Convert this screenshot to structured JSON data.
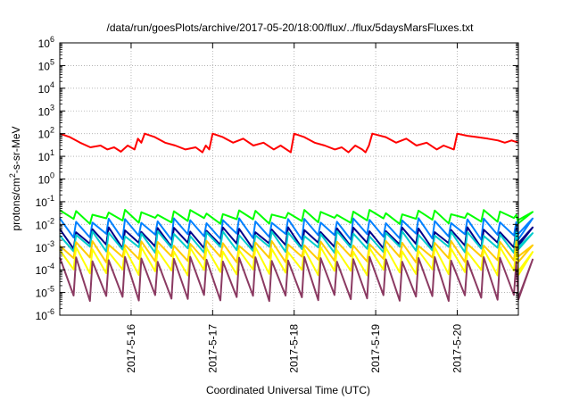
{
  "chart_data": {
    "type": "line",
    "title": "/data/run/goesPlots/archive/2017-05-20/18:00/flux/../flux/5daysMarsFluxes.txt",
    "xlabel": "Coordinated Universal Time (UTC)",
    "ylabel_main": "protons/cm",
    "ylabel_sup": "2",
    "ylabel_tail": "-s-sr-MeV",
    "y_scale": "log",
    "ylim_exp": [
      -6,
      6
    ],
    "y_ticks": [
      {
        "exp": -6,
        "label": "10",
        "sup": "-6"
      },
      {
        "exp": -5,
        "label": "10",
        "sup": "-5"
      },
      {
        "exp": -4,
        "label": "10",
        "sup": "-4"
      },
      {
        "exp": -3,
        "label": "10",
        "sup": "-3"
      },
      {
        "exp": -2,
        "label": "10",
        "sup": "-2"
      },
      {
        "exp": -1,
        "label": "10",
        "sup": "-1"
      },
      {
        "exp": 0,
        "label": "10",
        "sup": "0"
      },
      {
        "exp": 1,
        "label": "10",
        "sup": "1"
      },
      {
        "exp": 2,
        "label": "10",
        "sup": "2"
      },
      {
        "exp": 3,
        "label": "10",
        "sup": "3"
      },
      {
        "exp": 4,
        "label": "10",
        "sup": "4"
      },
      {
        "exp": 5,
        "label": "10",
        "sup": "5"
      },
      {
        "exp": 6,
        "label": "10",
        "sup": "6"
      }
    ],
    "xlim": [
      "2017-05-15 03:00",
      "2017-05-20 18:00"
    ],
    "x_ticks": [
      {
        "t": "2017-05-16 00:00",
        "label": "2017-5-16"
      },
      {
        "t": "2017-05-17 00:00",
        "label": "2017-5-17"
      },
      {
        "t": "2017-05-18 00:00",
        "label": "2017-5-18"
      },
      {
        "t": "2017-05-19 00:00",
        "label": "2017-5-19"
      },
      {
        "t": "2017-05-20 00:00",
        "label": "2017-5-20"
      }
    ],
    "grid": true,
    "series": [
      {
        "color": "#ff0000",
        "width": 2,
        "points": [
          [
            "2017-05-15 03:00",
            100
          ],
          [
            "2017-05-15 06:00",
            70
          ],
          [
            "2017-05-15 09:00",
            40
          ],
          [
            "2017-05-15 12:00",
            25
          ],
          [
            "2017-05-15 15:00",
            30
          ],
          [
            "2017-05-15 17:00",
            20
          ],
          [
            "2017-05-15 19:00",
            25
          ],
          [
            "2017-05-15 21:00",
            16
          ],
          [
            "2017-05-15 23:00",
            30
          ],
          [
            "2017-05-16 01:00",
            20
          ],
          [
            "2017-05-16 02:00",
            60
          ],
          [
            "2017-05-16 03:00",
            40
          ],
          [
            "2017-05-16 04:00",
            100
          ],
          [
            "2017-05-16 07:00",
            70
          ],
          [
            "2017-05-16 10:00",
            40
          ],
          [
            "2017-05-16 13:00",
            30
          ],
          [
            "2017-05-16 16:00",
            20
          ],
          [
            "2017-05-16 19:00",
            25
          ],
          [
            "2017-05-16 21:00",
            15
          ],
          [
            "2017-05-16 22:00",
            30
          ],
          [
            "2017-05-16 23:00",
            20
          ],
          [
            "2017-05-17 00:00",
            100
          ],
          [
            "2017-05-17 03:00",
            70
          ],
          [
            "2017-05-17 06:00",
            40
          ],
          [
            "2017-05-17 09:00",
            60
          ],
          [
            "2017-05-17 12:00",
            30
          ],
          [
            "2017-05-17 15:00",
            40
          ],
          [
            "2017-05-17 18:00",
            20
          ],
          [
            "2017-05-17 20:00",
            30
          ],
          [
            "2017-05-17 23:00",
            15
          ],
          [
            "2017-05-18 00:00",
            100
          ],
          [
            "2017-05-18 03:00",
            70
          ],
          [
            "2017-05-18 06:00",
            40
          ],
          [
            "2017-05-18 09:00",
            30
          ],
          [
            "2017-05-18 12:00",
            20
          ],
          [
            "2017-05-18 14:00",
            25
          ],
          [
            "2017-05-18 16:00",
            15
          ],
          [
            "2017-05-18 18:00",
            30
          ],
          [
            "2017-05-18 20:00",
            20
          ],
          [
            "2017-05-18 21:00",
            15
          ],
          [
            "2017-05-18 22:00",
            30
          ],
          [
            "2017-05-18 23:00",
            100
          ],
          [
            "2017-05-19 03:00",
            70
          ],
          [
            "2017-05-19 06:00",
            40
          ],
          [
            "2017-05-19 09:00",
            60
          ],
          [
            "2017-05-19 12:00",
            30
          ],
          [
            "2017-05-19 15:00",
            40
          ],
          [
            "2017-05-19 18:00",
            20
          ],
          [
            "2017-05-19 20:00",
            30
          ],
          [
            "2017-05-19 23:00",
            20
          ],
          [
            "2017-05-20 00:00",
            100
          ],
          [
            "2017-05-20 03:00",
            80
          ],
          [
            "2017-05-20 06:00",
            70
          ],
          [
            "2017-05-20 09:00",
            60
          ],
          [
            "2017-05-20 12:00",
            50
          ],
          [
            "2017-05-20 14:00",
            40
          ],
          [
            "2017-05-20 16:00",
            50
          ],
          [
            "2017-05-20 18:00",
            40
          ]
        ]
      },
      {
        "color": "#00ff00",
        "width": 2,
        "periodic": {
          "hi": 0.035,
          "lo": 0.015,
          "spikes_per_day": 5
        }
      },
      {
        "color": "#0080ff",
        "width": 2,
        "periodic": {
          "hi": 0.015,
          "lo": 0.003,
          "spikes_per_day": 5
        }
      },
      {
        "color": "#00008b",
        "width": 2,
        "periodic": {
          "hi": 0.006,
          "lo": 0.0012,
          "spikes_per_day": 5
        }
      },
      {
        "color": "#00cccc",
        "width": 2,
        "periodic": {
          "hi": 0.004,
          "lo": 0.0008,
          "spikes_per_day": 5
        }
      },
      {
        "color": "#ffcc00",
        "width": 2,
        "periodic": {
          "hi": 0.0015,
          "lo": 0.0003,
          "spikes_per_day": 5
        }
      },
      {
        "color": "#ffff00",
        "width": 2,
        "periodic": {
          "hi": 0.0008,
          "lo": 8e-05,
          "spikes_per_day": 5
        }
      },
      {
        "color": "#8b3a62",
        "width": 2,
        "periodic": {
          "hi": 0.0003,
          "lo": 6e-06,
          "spikes_per_day": 5
        }
      }
    ]
  }
}
